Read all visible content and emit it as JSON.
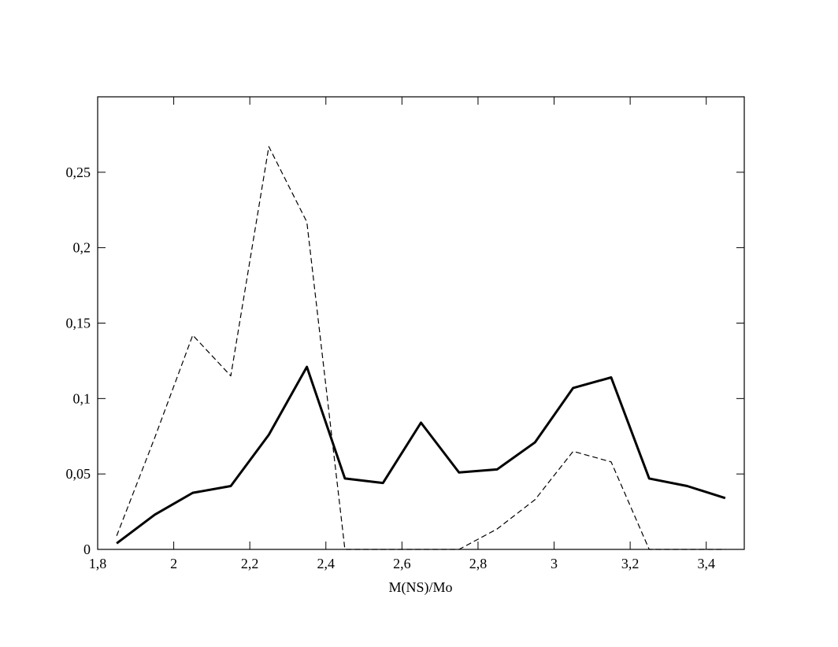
{
  "chart_data": {
    "type": "line",
    "x_label": "M(NS)/Mo",
    "x": [
      1.85,
      1.95,
      2.05,
      2.15,
      2.25,
      2.35,
      2.45,
      2.55,
      2.65,
      2.75,
      2.85,
      2.95,
      3.05,
      3.15,
      3.25,
      3.35,
      3.45
    ],
    "series": [
      {
        "color": "#000000",
        "line_style": "solid",
        "width": 3,
        "values": [
          0.004,
          0.023,
          0.0375,
          0.042,
          0.076,
          0.121,
          0.047,
          0.044,
          0.084,
          0.051,
          0.053,
          0.071,
          0.107,
          0.114,
          0.047,
          0.042,
          0.034
        ]
      },
      {
        "color": "#000000",
        "line_style": "dashed",
        "width": 1.2,
        "values": [
          0.009,
          0.074,
          0.142,
          0.115,
          0.267,
          0.217,
          0,
          0,
          0,
          0,
          0.0135,
          0.033,
          0.065,
          0.058,
          0,
          0,
          0
        ]
      }
    ],
    "xlim": [
      1.8,
      3.5
    ],
    "ylim": [
      0,
      0.3
    ],
    "xticks": [
      {
        "value": 1.8,
        "label": "1,8"
      },
      2,
      {
        "value": 2.2,
        "label": "2,2"
      },
      {
        "value": 2.4,
        "label": "2,4"
      },
      {
        "value": 2.6,
        "label": "2,6"
      },
      {
        "value": 2.8,
        "label": "2,8"
      },
      3,
      {
        "value": 3.2,
        "label": "3,2"
      },
      {
        "value": 3.4,
        "label": "3,4"
      }
    ],
    "yticks": [
      0,
      {
        "value": 0.05,
        "label": "0,05"
      },
      {
        "value": 0.1,
        "label": "0,1"
      },
      {
        "value": 0.15,
        "label": "0,15"
      },
      {
        "value": 0.2,
        "label": "0,2"
      },
      {
        "value": 0.25,
        "label": "0,25"
      }
    ],
    "grid": false
  }
}
